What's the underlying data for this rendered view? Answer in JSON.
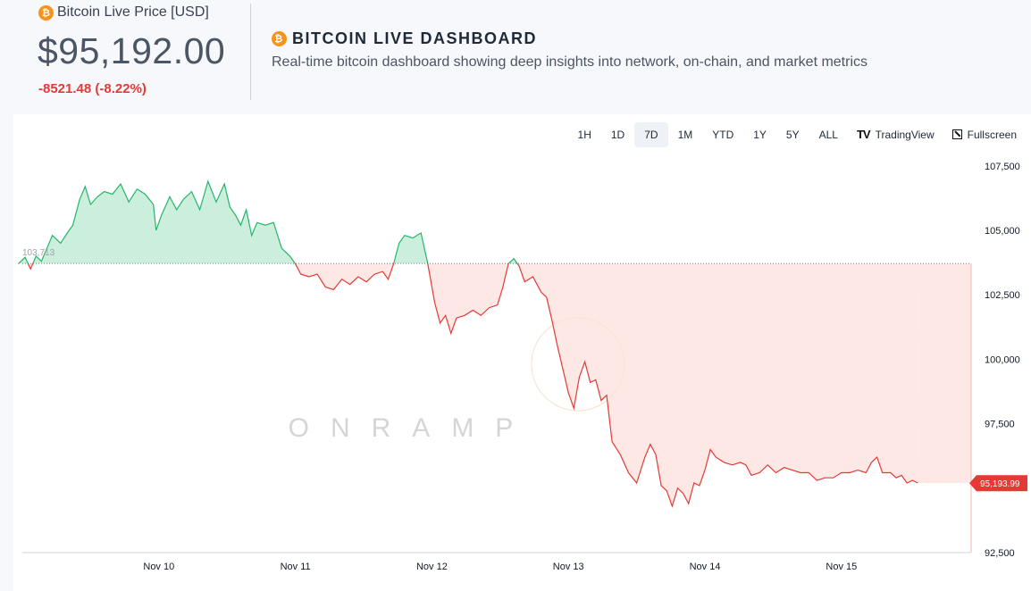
{
  "price_panel": {
    "title": "Bitcoin Live Price [USD]",
    "price": "$95,192.00",
    "change": "-8521.48 (-8.22%)",
    "icon": "bitcoin-icon"
  },
  "dashboard": {
    "title": "BITCOIN LIVE DASHBOARD",
    "subtitle": "Real-time bitcoin dashboard showing deep insights into network, on-chain, and market metrics"
  },
  "toolbar": {
    "ranges": [
      "1H",
      "1D",
      "7D",
      "1M",
      "YTD",
      "1Y",
      "5Y",
      "ALL"
    ],
    "active_range": "7D",
    "tradingview_label": "TradingView",
    "fullscreen_label": "Fullscreen"
  },
  "watermark": "ONRAMP",
  "colors": {
    "up": "#26b56a",
    "down": "#e53935",
    "up_fill": "#c8eeda",
    "down_fill": "#fde0de",
    "bitcoin": "#f7931a"
  },
  "chart_data": {
    "type": "area",
    "x_ticks": [
      "Nov 10",
      "Nov 11",
      "Nov 12",
      "Nov 13",
      "Nov 14",
      "Nov 15"
    ],
    "y_ticks": [
      "107,500",
      "105,000",
      "102,500",
      "100,000",
      "97,500",
      "92,500"
    ],
    "y_tick_values": [
      107500,
      105000,
      102500,
      100000,
      97500,
      92500
    ],
    "ylim": [
      92500,
      109500
    ],
    "xlim": [
      0,
      6.95
    ],
    "baseline": 103713,
    "baseline_label": "103,713",
    "last_value": 95193.99,
    "last_label": "95,193.99",
    "grid": false,
    "series": [
      {
        "points": [
          [
            -0.03,
            103700
          ],
          [
            0.02,
            103950
          ],
          [
            0.06,
            103500
          ],
          [
            0.1,
            104000
          ],
          [
            0.14,
            103800
          ],
          [
            0.18,
            104300
          ],
          [
            0.22,
            104800
          ],
          [
            0.28,
            104500
          ],
          [
            0.33,
            104900
          ],
          [
            0.37,
            105200
          ],
          [
            0.42,
            106200
          ],
          [
            0.46,
            106700
          ],
          [
            0.5,
            106000
          ],
          [
            0.55,
            106300
          ],
          [
            0.6,
            106500
          ],
          [
            0.66,
            106400
          ],
          [
            0.72,
            106800
          ],
          [
            0.78,
            106100
          ],
          [
            0.84,
            106600
          ],
          [
            0.9,
            106400
          ],
          [
            0.96,
            106000
          ],
          [
            0.98,
            105000
          ],
          [
            1.02,
            105600
          ],
          [
            1.08,
            106300
          ],
          [
            1.13,
            105800
          ],
          [
            1.18,
            106200
          ],
          [
            1.24,
            106500
          ],
          [
            1.3,
            105800
          ],
          [
            1.36,
            106900
          ],
          [
            1.42,
            106100
          ],
          [
            1.48,
            106800
          ],
          [
            1.52,
            105900
          ],
          [
            1.56,
            105600
          ],
          [
            1.6,
            105200
          ],
          [
            1.64,
            105800
          ],
          [
            1.68,
            104800
          ],
          [
            1.72,
            105300
          ],
          [
            1.78,
            105200
          ],
          [
            1.84,
            105300
          ],
          [
            1.9,
            104300
          ],
          [
            1.96,
            104000
          ],
          [
            2.0,
            103700
          ],
          [
            2.04,
            103300
          ],
          [
            2.1,
            103200
          ],
          [
            2.16,
            103300
          ],
          [
            2.22,
            102800
          ],
          [
            2.28,
            102700
          ],
          [
            2.34,
            103100
          ],
          [
            2.4,
            102900
          ],
          [
            2.46,
            103200
          ],
          [
            2.52,
            103000
          ],
          [
            2.58,
            103300
          ],
          [
            2.64,
            103400
          ],
          [
            2.68,
            103100
          ],
          [
            2.72,
            103700
          ],
          [
            2.76,
            104500
          ],
          [
            2.8,
            104800
          ],
          [
            2.86,
            104700
          ],
          [
            2.92,
            104900
          ],
          [
            2.97,
            103700
          ],
          [
            3.02,
            102200
          ],
          [
            3.06,
            101400
          ],
          [
            3.1,
            101700
          ],
          [
            3.14,
            101000
          ],
          [
            3.18,
            101600
          ],
          [
            3.24,
            101700
          ],
          [
            3.3,
            101900
          ],
          [
            3.36,
            101700
          ],
          [
            3.42,
            102000
          ],
          [
            3.48,
            102100
          ],
          [
            3.52,
            102800
          ],
          [
            3.56,
            103700
          ],
          [
            3.6,
            103900
          ],
          [
            3.64,
            103600
          ],
          [
            3.68,
            103000
          ],
          [
            3.74,
            103200
          ],
          [
            3.8,
            102600
          ],
          [
            3.84,
            102400
          ],
          [
            3.88,
            101500
          ],
          [
            3.92,
            100500
          ],
          [
            3.96,
            99600
          ],
          [
            4.0,
            98700
          ],
          [
            4.04,
            98100
          ],
          [
            4.08,
            99300
          ],
          [
            4.12,
            99900
          ],
          [
            4.16,
            99100
          ],
          [
            4.2,
            99200
          ],
          [
            4.24,
            98400
          ],
          [
            4.28,
            98600
          ],
          [
            4.32,
            96800
          ],
          [
            4.38,
            96300
          ],
          [
            4.44,
            95600
          ],
          [
            4.5,
            95200
          ],
          [
            4.56,
            96200
          ],
          [
            4.6,
            96700
          ],
          [
            4.64,
            96300
          ],
          [
            4.68,
            95100
          ],
          [
            4.72,
            94900
          ],
          [
            4.76,
            94300
          ],
          [
            4.8,
            95000
          ],
          [
            4.84,
            94800
          ],
          [
            4.88,
            94400
          ],
          [
            4.92,
            95200
          ],
          [
            4.96,
            95100
          ],
          [
            5.0,
            95700
          ],
          [
            5.04,
            96500
          ],
          [
            5.08,
            96200
          ],
          [
            5.14,
            96000
          ],
          [
            5.2,
            95900
          ],
          [
            5.26,
            96000
          ],
          [
            5.3,
            95900
          ],
          [
            5.34,
            95500
          ],
          [
            5.4,
            95600
          ],
          [
            5.46,
            95900
          ],
          [
            5.52,
            95600
          ],
          [
            5.58,
            95800
          ],
          [
            5.64,
            95700
          ],
          [
            5.7,
            95600
          ],
          [
            5.76,
            95600
          ],
          [
            5.82,
            95300
          ],
          [
            5.88,
            95400
          ],
          [
            5.94,
            95400
          ],
          [
            6.0,
            95600
          ],
          [
            6.06,
            95600
          ],
          [
            6.12,
            95700
          ],
          [
            6.18,
            95600
          ],
          [
            6.22,
            96000
          ],
          [
            6.26,
            96200
          ],
          [
            6.3,
            95600
          ],
          [
            6.36,
            95600
          ],
          [
            6.4,
            95400
          ],
          [
            6.44,
            95500
          ],
          [
            6.48,
            95200
          ],
          [
            6.52,
            95300
          ],
          [
            6.56,
            95200
          ]
        ]
      }
    ]
  }
}
